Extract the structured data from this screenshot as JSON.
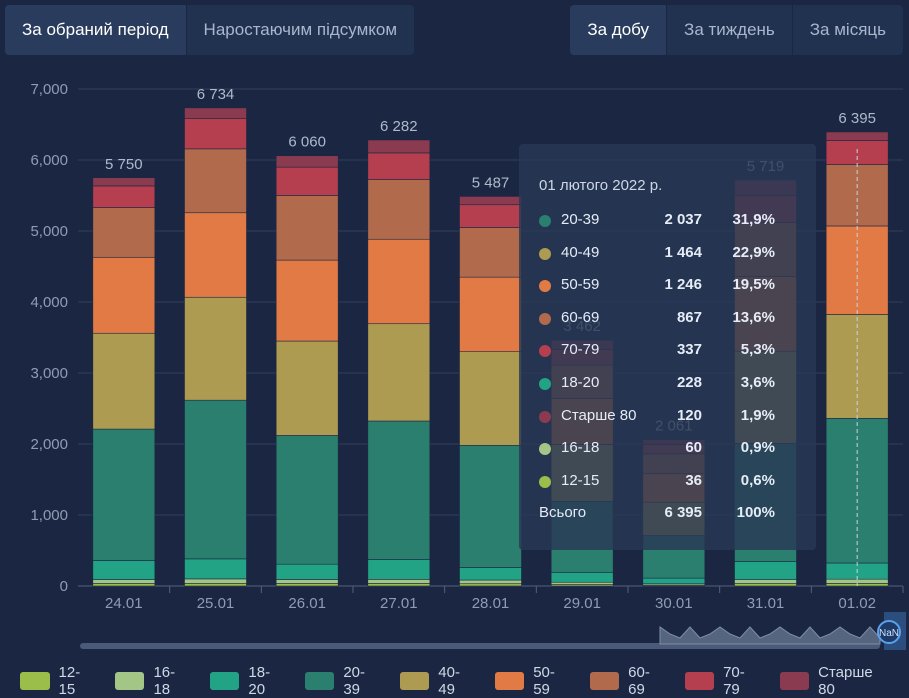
{
  "tabs_left": [
    {
      "label": "За обраний період",
      "active": true
    },
    {
      "label": "Наростаючим підсумком",
      "active": false
    }
  ],
  "tabs_right": [
    {
      "label": "За добу",
      "active": true
    },
    {
      "label": "За тиждень",
      "active": false
    },
    {
      "label": "За місяць",
      "active": false
    }
  ],
  "chart_data": {
    "type": "bar",
    "stacked": true,
    "categories": [
      "24.01",
      "25.01",
      "26.01",
      "27.01",
      "28.01",
      "29.01",
      "30.01",
      "31.01",
      "01.02"
    ],
    "ylim": [
      0,
      7000
    ],
    "yticks": [
      "0",
      "1,000",
      "2,000",
      "3,000",
      "4,000",
      "5,000",
      "6,000",
      "7,000"
    ],
    "totals": [
      5750,
      6734,
      6060,
      6282,
      5487,
      3462,
      2061,
      5719,
      6395
    ],
    "total_labels": [
      "5 750",
      "6 734",
      "6 060",
      "6 282",
      "5 487",
      "3 462",
      "2 061",
      "5 719",
      "6 395"
    ],
    "series": [
      {
        "name": "12-15",
        "color": "#9bbd4a",
        "values": [
          35,
          38,
          35,
          36,
          32,
          20,
          12,
          34,
          36
        ]
      },
      {
        "name": "16-18",
        "color": "#a3c585",
        "values": [
          55,
          62,
          57,
          58,
          52,
          33,
          19,
          55,
          60
        ]
      },
      {
        "name": "18-20",
        "color": "#22a386",
        "values": [
          270,
          282,
          215,
          280,
          176,
          140,
          80,
          258,
          228
        ]
      },
      {
        "name": "20-39",
        "color": "#2a7f6f",
        "values": [
          1850,
          2235,
          1813,
          1950,
          1720,
          1000,
          600,
          1660,
          2037
        ]
      },
      {
        "name": "40-49",
        "color": "#ad9b52",
        "values": [
          1350,
          1450,
          1330,
          1370,
          1320,
          800,
          470,
          1300,
          1464
        ]
      },
      {
        "name": "50-59",
        "color": "#e27a45",
        "values": [
          1070,
          1190,
          1140,
          1190,
          1050,
          650,
          400,
          1050,
          1246
        ]
      },
      {
        "name": "60-69",
        "color": "#b26a4c",
        "values": [
          700,
          900,
          910,
          840,
          700,
          470,
          280,
          760,
          867
        ]
      },
      {
        "name": "70-79",
        "color": "#b53e4f",
        "values": [
          305,
          430,
          400,
          376,
          320,
          220,
          130,
          380,
          337
        ]
      },
      {
        "name": "Старше 80",
        "color": "#8b3b4f",
        "values": [
          115,
          147,
          160,
          182,
          117,
          129,
          70,
          222,
          120
        ]
      }
    ]
  },
  "tooltip": {
    "date": "01 лютого 2022 р.",
    "rows": [
      {
        "name": "20-39",
        "value": "2 037",
        "pct": "31,9%",
        "color": "#2a7f6f"
      },
      {
        "name": "40-49",
        "value": "1 464",
        "pct": "22,9%",
        "color": "#ad9b52"
      },
      {
        "name": "50-59",
        "value": "1 246",
        "pct": "19,5%",
        "color": "#e27a45"
      },
      {
        "name": "60-69",
        "value": "867",
        "pct": "13,6%",
        "color": "#b26a4c"
      },
      {
        "name": "70-79",
        "value": "337",
        "pct": "5,3%",
        "color": "#b53e4f"
      },
      {
        "name": "18-20",
        "value": "228",
        "pct": "3,6%",
        "color": "#22a386"
      },
      {
        "name": "Старше 80",
        "value": "120",
        "pct": "1,9%",
        "color": "#8b3b4f"
      },
      {
        "name": "16-18",
        "value": "60",
        "pct": "0,9%",
        "color": "#a3c585"
      },
      {
        "name": "12-15",
        "value": "36",
        "pct": "0,6%",
        "color": "#9bbd4a"
      }
    ],
    "total": {
      "name": "Всього",
      "value": "6 395",
      "pct": "100%"
    }
  },
  "navigator": {
    "handle_label": "NaN"
  }
}
